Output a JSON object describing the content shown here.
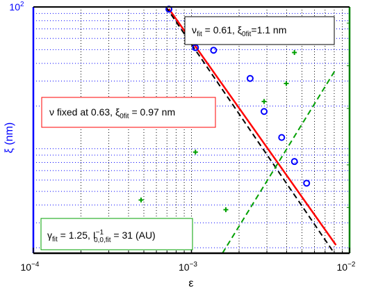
{
  "chart_data": {
    "type": "scatter",
    "title": "",
    "xlabel": "ε",
    "ylabel": "ξ (nm)",
    "x_scale": "log",
    "y_scale": "log",
    "xlim": [
      0.0001,
      0.01
    ],
    "ylim": [
      1.83,
      100
    ],
    "x_ticks": [
      {
        "value": 0.0001,
        "base": "10",
        "exp": "−4"
      },
      {
        "value": 0.001,
        "base": "10",
        "exp": "−3"
      },
      {
        "value": 0.01,
        "base": "10",
        "exp": "−2"
      }
    ],
    "y_ticks": [
      {
        "value": 100,
        "base": "10",
        "exp": "2"
      }
    ],
    "grid": true,
    "grid_style": "dotted",
    "series": [
      {
        "marker": "open-circle",
        "color": "#0000ff",
        "axis": "left",
        "x": [
          0.00072,
          0.00106,
          0.00138,
          0.00235,
          0.00288,
          0.00372,
          0.00448,
          0.00535
        ],
        "y": [
          96.5,
          51.6,
          49.5,
          31.3,
          18.3,
          12.0,
          8.12,
          5.71
        ]
      },
      {
        "marker": "plus",
        "color": "#00a000",
        "axis": "right",
        "x": [
          0.00048,
          0.00106,
          0.00165,
          0.00288,
          0.00398,
          0.00448
        ],
        "y": [
          0.0113,
          0.0246,
          0.00965,
          0.056,
          0.075,
          0.124
        ]
      }
    ],
    "fits": [
      {
        "style": "solid",
        "color": "#ff0000",
        "series_ref": 0,
        "exponent": -0.61,
        "x": [
          0.00072,
          0.0082
        ],
        "y": [
          97,
          2.09
        ]
      },
      {
        "style": "dashed",
        "color": "#000000",
        "series_ref": 0,
        "exponent": -0.63,
        "x": [
          0.00069,
          0.008
        ],
        "y": [
          100,
          1.83
        ]
      },
      {
        "style": "dashed",
        "color": "#00a000",
        "series_ref": 1,
        "exponent": 1.25,
        "x": [
          0.00157,
          0.0082
        ],
        "y": [
          0.00476,
          0.0948
        ]
      }
    ],
    "right_axis": {
      "scale": "log",
      "ylim": [
        0.00476,
        0.26
      ],
      "color": "#008000",
      "tick_labels": []
    },
    "annotations": {
      "fit_free": {
        "nu_prefix": "ν",
        "nu_sub": "fit",
        "nu_value": " = 0.61, ",
        "xi_prefix": "ξ",
        "xi_sub": "0fit",
        "xi_value": "=1.1  nm",
        "border": "#000000"
      },
      "fit_fixed": {
        "text_a": "ν fixed at 0.63, ",
        "xi_prefix": "ξ",
        "xi_sub": "0fit",
        "xi_value": " = 0.97 nm",
        "border": "#ff0000"
      },
      "fit_gamma": {
        "gamma_prefix": "γ",
        "gamma_sub": "fit",
        "gamma_value": " = 1.25, ",
        "i_prefix": "I",
        "i_sup": "−1",
        "i_sub": "0,0,fit",
        "i_value": " = 31 (AU)",
        "border": "#00a000"
      }
    },
    "colors": {
      "left_axis": "#0000ff",
      "right_axis": "#008000",
      "axis_black": "#000000"
    }
  }
}
